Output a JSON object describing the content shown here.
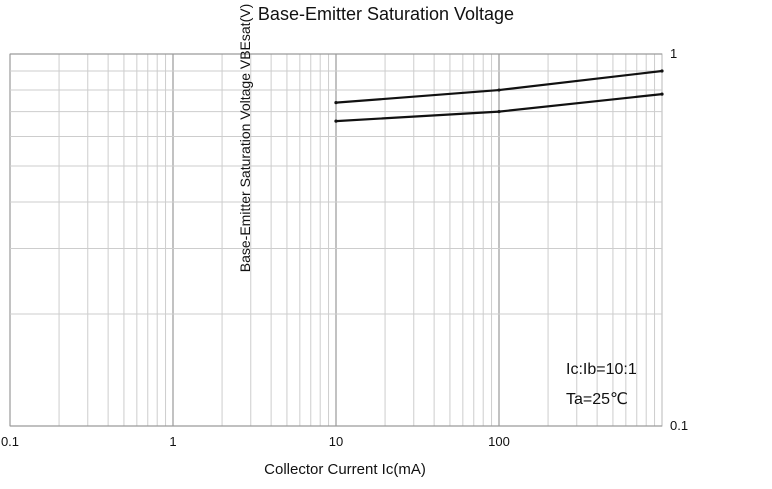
{
  "chart_data": {
    "type": "line",
    "title": "Base-Emitter Saturation Voltage",
    "xlabel": "Collector Current   Ic(mA)",
    "ylabel": "Base-Emitter Saturation Voltage   VBEsat(V)",
    "x_scale": "log",
    "x_ticks": [
      0.1,
      1,
      10,
      100
    ],
    "x_tick_labels": [
      "0.1",
      "1",
      "10",
      "100"
    ],
    "y_ticks": [
      1,
      0.1
    ],
    "y_tick_labels": [
      "1",
      "0.1"
    ],
    "x_range": [
      0.1,
      1000
    ],
    "y_range": [
      0.1,
      1
    ],
    "grid": true,
    "series": [
      {
        "x": [
          10,
          100,
          1000
        ],
        "y": [
          0.74,
          0.8,
          0.9
        ]
      },
      {
        "x": [
          10,
          100,
          1000
        ],
        "y": [
          0.66,
          0.7,
          0.78
        ]
      }
    ],
    "annotations": [
      "Ic:Ib=10:1",
      "Ta=25℃"
    ]
  }
}
